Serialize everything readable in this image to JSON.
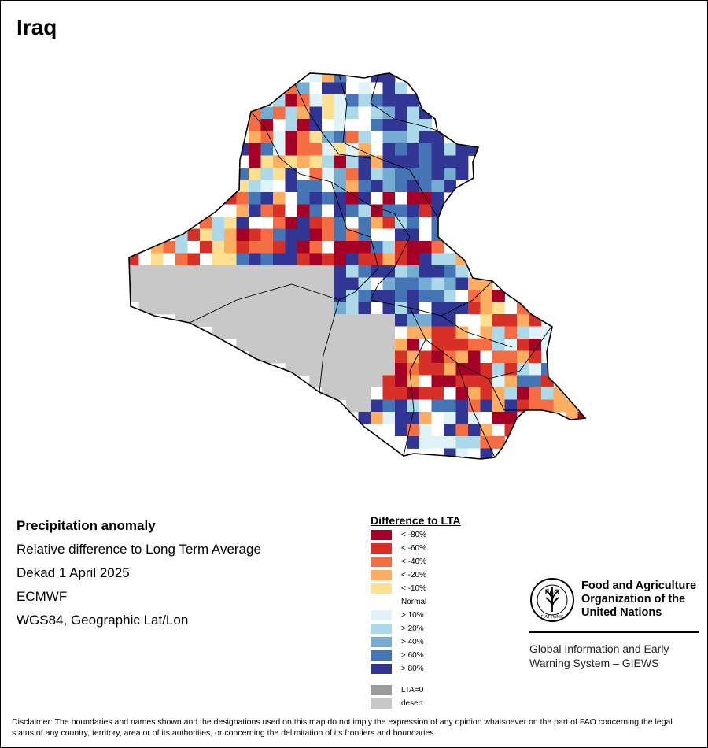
{
  "map": {
    "title": "Iraq",
    "info_lines": [
      "Precipitation anomaly",
      "Relative difference to Long Term Average",
      "Dekad 1 April 2025",
      "ECMWF",
      "WGS84, Geographic Lat/Lon"
    ]
  },
  "legend": {
    "title": "Difference to LTA",
    "items": [
      {
        "label": "< -80%",
        "color": "#a50026"
      },
      {
        "label": "< -60%",
        "color": "#d73027"
      },
      {
        "label": "< -40%",
        "color": "#f46d43"
      },
      {
        "label": "< -20%",
        "color": "#fdae61"
      },
      {
        "label": "< -10%",
        "color": "#fee090"
      },
      {
        "label": "Normal",
        "color": "#ffffff"
      },
      {
        "label": "> 10%",
        "color": "#e0f3f8"
      },
      {
        "label": "> 20%",
        "color": "#abd9e9"
      },
      {
        "label": "> 40%",
        "color": "#74add1"
      },
      {
        "label": "> 60%",
        "color": "#4575b4"
      },
      {
        "label": "> 80%",
        "color": "#313695"
      }
    ],
    "extra": [
      {
        "label": "LTA=0",
        "color": "#9b9b9b"
      },
      {
        "label": "desert",
        "color": "#c8c8c8"
      }
    ]
  },
  "fao": {
    "name_lines": [
      "Food and Agriculture",
      "Organization of the",
      "United Nations"
    ],
    "logo_text": "FAO",
    "motto": "FIAT PANIS"
  },
  "giews": {
    "lines": [
      "Global Information and Early",
      "Warning System – GIEWS"
    ]
  },
  "disclaimer": "Disclaimer: The boundaries and names shown and the designations used on this map do not imply the expression of any opinion whatsoever on the part of FAO concerning the legal status of any country, territory, area or of its authorities, or concerning the delimitation of its frontiers and boundaries."
}
